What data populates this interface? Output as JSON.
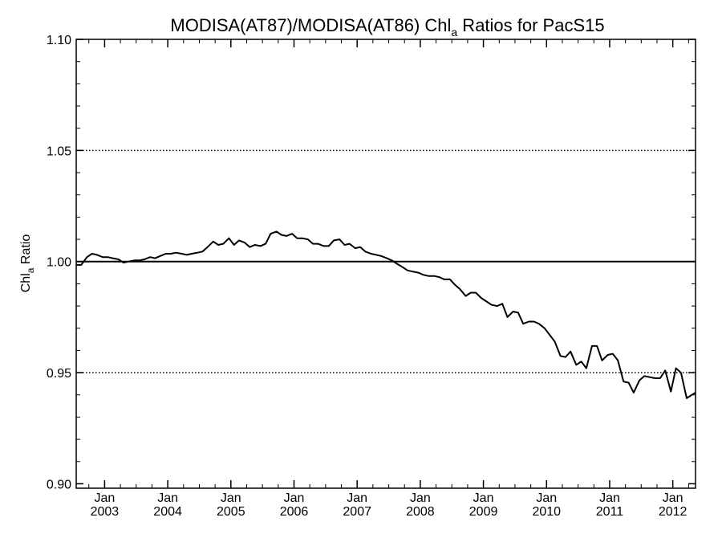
{
  "chart_data": {
    "type": "line",
    "title": {
      "prefix": "MODISA(AT87)/MODISA(AT86)  Chl",
      "subscript": "a",
      "suffix": " Ratios for PacS15"
    },
    "ylabel": {
      "prefix": "Chl",
      "subscript": "a",
      "suffix": " Ratio"
    },
    "ylim": [
      0.898,
      1.1
    ],
    "xlim": [
      2002.55,
      2012.36
    ],
    "y_ticks": [
      "1.10",
      "1.05",
      "1.00",
      "0.95",
      "0.90"
    ],
    "y_tick_values": [
      1.1,
      1.05,
      1.0,
      0.95,
      0.9
    ],
    "x_ticks": [
      {
        "month": "Jan",
        "year": "2003",
        "x": 2003.0
      },
      {
        "month": "Jan",
        "year": "2004",
        "x": 2004.0
      },
      {
        "month": "Jan",
        "year": "2005",
        "x": 2005.0
      },
      {
        "month": "Jan",
        "year": "2006",
        "x": 2006.0
      },
      {
        "month": "Jan",
        "year": "2007",
        "x": 2007.0
      },
      {
        "month": "Jan",
        "year": "2008",
        "x": 2008.0
      },
      {
        "month": "Jan",
        "year": "2009",
        "x": 2009.0
      },
      {
        "month": "Jan",
        "year": "2010",
        "x": 2010.0
      },
      {
        "month": "Jan",
        "year": "2011",
        "x": 2011.0
      },
      {
        "month": "Jan",
        "year": "2012",
        "x": 2012.0
      }
    ],
    "reference_lines": [
      {
        "y": 1.05,
        "style": "dotted"
      },
      {
        "y": 1.0,
        "style": "solid"
      },
      {
        "y": 0.95,
        "style": "dotted"
      }
    ],
    "line_color": "#000000",
    "series": [
      {
        "x": [
          2002.55,
          2002.63,
          2002.72,
          2002.8,
          2002.88,
          2002.97,
          2003.05,
          2003.13,
          2003.22,
          2003.3,
          2003.38,
          2003.47,
          2003.55,
          2003.63,
          2003.72,
          2003.8,
          2003.88,
          2003.97,
          2004.05,
          2004.13,
          2004.22,
          2004.3,
          2004.38,
          2004.47,
          2004.55,
          2004.63,
          2004.72,
          2004.8,
          2004.88,
          2004.97,
          2005.05,
          2005.13,
          2005.22,
          2005.3,
          2005.38,
          2005.47,
          2005.55,
          2005.63,
          2005.72,
          2005.8,
          2005.88,
          2005.97,
          2006.05,
          2006.13,
          2006.22,
          2006.3,
          2006.38,
          2006.47,
          2006.55,
          2006.63,
          2006.72,
          2006.8,
          2006.88,
          2006.97,
          2007.05,
          2007.13,
          2007.22,
          2007.3,
          2007.38,
          2007.47,
          2007.55,
          2007.63,
          2007.72,
          2007.8,
          2007.88,
          2007.97,
          2008.05,
          2008.13,
          2008.22,
          2008.3,
          2008.38,
          2008.47,
          2008.55,
          2008.63,
          2008.72,
          2008.8,
          2008.88,
          2008.97,
          2009.05,
          2009.13,
          2009.22,
          2009.3,
          2009.38,
          2009.47,
          2009.55,
          2009.63,
          2009.72,
          2009.8,
          2009.88,
          2009.97,
          2010.05,
          2010.13,
          2010.22,
          2010.3,
          2010.38,
          2010.47,
          2010.55,
          2010.63,
          2010.72,
          2010.8,
          2010.88,
          2010.97,
          2011.05,
          2011.13,
          2011.22,
          2011.3,
          2011.38,
          2011.47,
          2011.55,
          2011.63,
          2011.72,
          2011.8,
          2011.88,
          2011.97,
          2012.05,
          2012.13,
          2012.22,
          2012.3,
          2012.36
        ],
        "values": [
          0.9985,
          0.9985,
          1.002,
          1.0035,
          1.003,
          1.002,
          1.002,
          1.0015,
          1.001,
          0.9995,
          1.0,
          1.0005,
          1.0005,
          1.001,
          1.002,
          1.0015,
          1.0025,
          1.0035,
          1.0035,
          1.004,
          1.0035,
          1.003,
          1.0035,
          1.004,
          1.0045,
          1.0065,
          1.009,
          1.0075,
          1.008,
          1.0105,
          1.0075,
          1.0095,
          1.0085,
          1.0065,
          1.0075,
          1.007,
          1.008,
          1.0125,
          1.0135,
          1.012,
          1.0115,
          1.0125,
          1.0105,
          1.0105,
          1.01,
          1.008,
          1.008,
          1.007,
          1.007,
          1.0095,
          1.01,
          1.0075,
          1.008,
          1.006,
          1.0065,
          1.0045,
          1.0035,
          1.003,
          1.0025,
          1.0015,
          1.0005,
          0.999,
          0.9975,
          0.996,
          0.9955,
          0.995,
          0.994,
          0.9935,
          0.9935,
          0.993,
          0.992,
          0.992,
          0.9895,
          0.9875,
          0.9845,
          0.986,
          0.986,
          0.9835,
          0.982,
          0.9805,
          0.98,
          0.981,
          0.975,
          0.9775,
          0.977,
          0.972,
          0.973,
          0.973,
          0.972,
          0.97,
          0.967,
          0.964,
          0.9575,
          0.957,
          0.9595,
          0.9535,
          0.955,
          0.952,
          0.962,
          0.962,
          0.9555,
          0.958,
          0.9585,
          0.9555,
          0.946,
          0.9455,
          0.941,
          0.9465,
          0.9485,
          0.948,
          0.9475,
          0.9475,
          0.951,
          0.9415,
          0.952,
          0.95,
          0.9385,
          0.94,
          0.941
        ]
      }
    ]
  }
}
